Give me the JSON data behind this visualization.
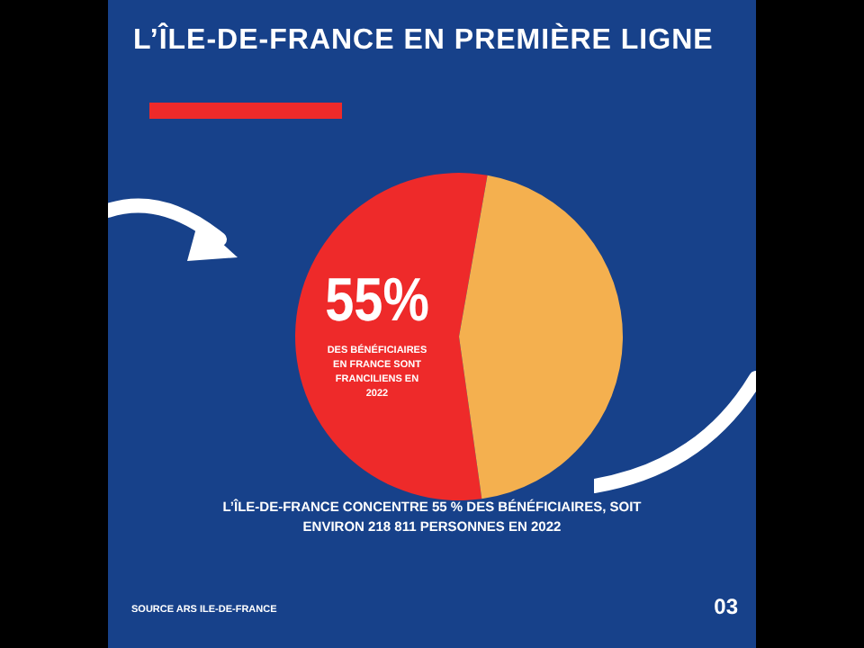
{
  "chart_data": {
    "type": "pie",
    "title": "L’ÎLE-DE-FRANCE EN PREMIÈRE LIGNE",
    "categories": [
      "DES BÉNÉFICIAIRES EN FRANCE SONT FRANCILIENS EN 2022",
      null
    ],
    "values": [
      55,
      45
    ],
    "colors": [
      "#ee2a2a",
      "#f4b04f"
    ],
    "value_labels": [
      "55%",
      null
    ],
    "legend": false,
    "annotations": [
      "L’ÎLE-DE-FRANCE CONCENTRE 55 % DES BÉNÉFICIAIRES, SOIT ENVIRON 218 811 PERSONNES EN 2022",
      "SOURCE ARS ILE-DE-FRANCE",
      "03"
    ]
  }
}
